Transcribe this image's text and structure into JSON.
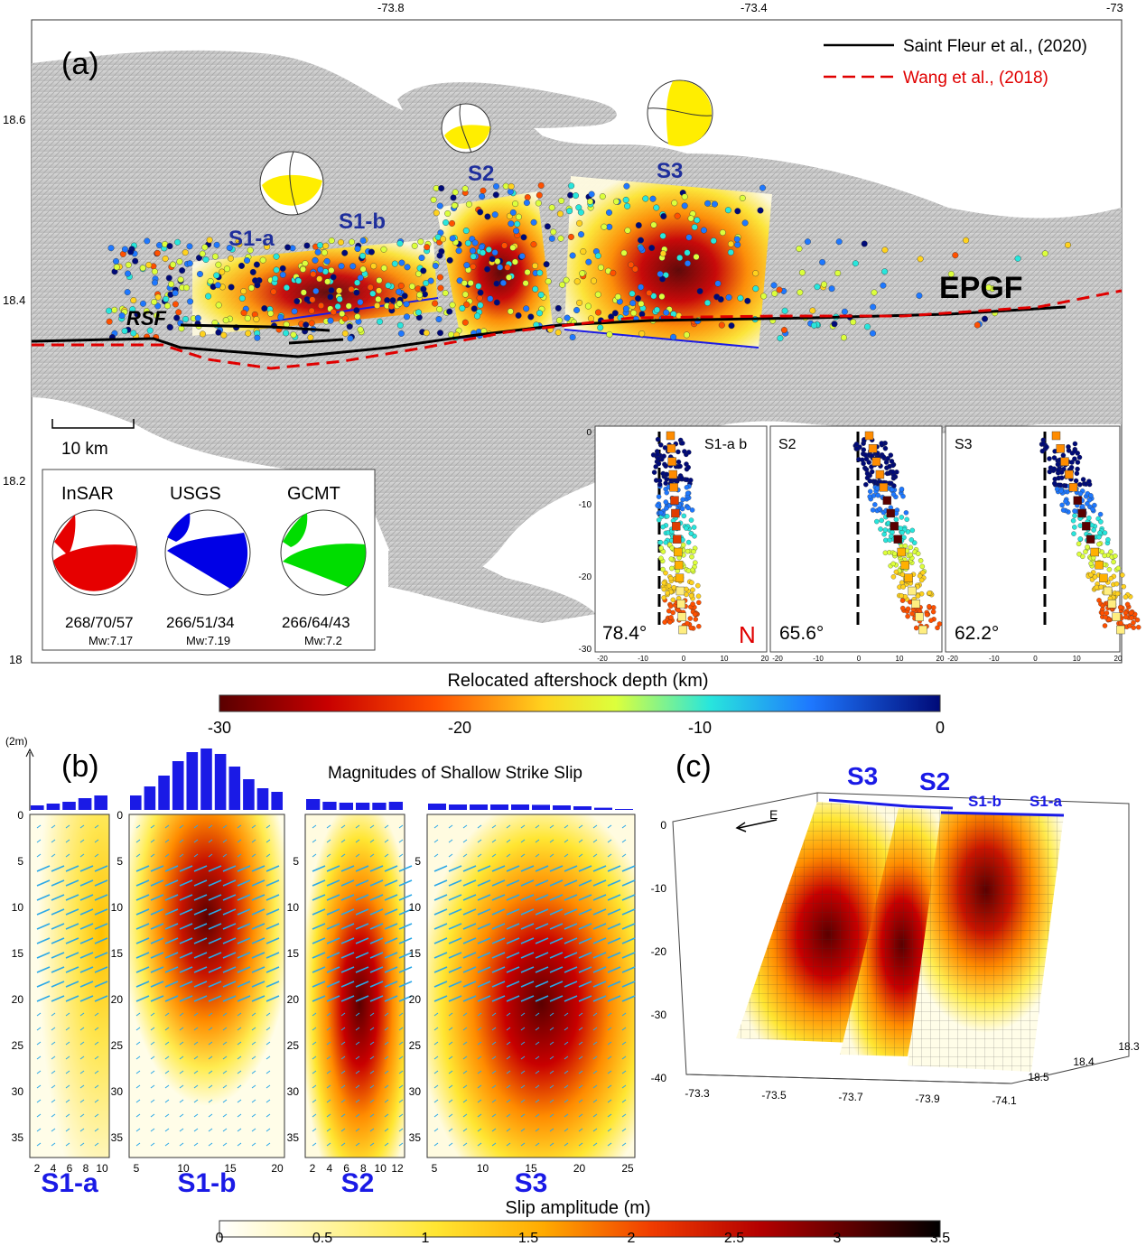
{
  "panel_a": {
    "label": "(a)",
    "lon_ticks": [
      "-73.8",
      "-73.4",
      "-73"
    ],
    "lat_ticks": [
      "18.6",
      "18.4",
      "18.2",
      "18"
    ],
    "legend": [
      {
        "text": "Saint Fleur et al., (2020)",
        "color": "#000000",
        "style": "solid"
      },
      {
        "text": "Wang et al., (2018)",
        "color": "#e00000",
        "style": "dashed"
      }
    ],
    "segments": [
      "S1-a",
      "S1-b",
      "S2",
      "S3"
    ],
    "fault_labels": {
      "epgf": "EPGF",
      "rsf": "RSF"
    },
    "scale_bar": "10 km",
    "mechanisms": [
      {
        "source": "InSAR",
        "params": "268/70/57",
        "mw": "Mw:7.17",
        "color": "#e60000"
      },
      {
        "source": "USGS",
        "params": "266/51/34",
        "mw": "Mw:7.19",
        "color": "#0000e6"
      },
      {
        "source": "GCMT",
        "params": "266/64/43",
        "mw": "Mw:7.2",
        "color": "#00dd00"
      }
    ],
    "profiles": [
      {
        "label": "S1-a b",
        "dip": "78.4°",
        "north": "N"
      },
      {
        "label": "S2",
        "dip": "65.6°",
        "north": ""
      },
      {
        "label": "S3",
        "dip": "62.2°",
        "north": ""
      }
    ],
    "profile_y_ticks": [
      "0",
      "-10",
      "-20",
      "-30"
    ],
    "profile_x_ticks": [
      "-20",
      "-10",
      "0",
      "10",
      "20"
    ]
  },
  "depth_colorbar": {
    "title": "Relocated aftershock depth (km)",
    "ticks": [
      "-30",
      "-20",
      "-10",
      "0"
    ]
  },
  "panel_b": {
    "label": "(b)",
    "scale": "(2m)",
    "title": "Magnitudes of Shallow Strike Slip",
    "segments": [
      {
        "name": "S1-a",
        "x_ticks": [
          "2",
          "4",
          "6",
          "8",
          "10"
        ],
        "histogram": [
          0.25,
          0.35,
          0.45,
          0.65,
          0.8
        ]
      },
      {
        "name": "S1-b",
        "x_ticks": [
          "5",
          "10",
          "15",
          "20"
        ],
        "histogram": [
          0.8,
          1.3,
          1.9,
          2.7,
          3.2,
          3.4,
          3.1,
          2.4,
          1.7,
          1.2,
          1.0
        ]
      },
      {
        "name": "S2",
        "x_ticks": [
          "2",
          "4",
          "6",
          "8",
          "10",
          "12"
        ],
        "histogram": [
          0.6,
          0.45,
          0.4,
          0.4,
          0.4,
          0.45
        ]
      },
      {
        "name": "S3",
        "x_ticks": [
          "5",
          "10",
          "15",
          "20",
          "25"
        ],
        "histogram": [
          0.35,
          0.3,
          0.3,
          0.3,
          0.3,
          0.28,
          0.25,
          0.2,
          0.12,
          0.05
        ]
      }
    ],
    "depth_ticks": [
      "0",
      "5",
      "10",
      "15",
      "20",
      "25",
      "30",
      "35"
    ]
  },
  "panel_c": {
    "label": "(c)",
    "segments": [
      "S3",
      "S2",
      "S1-b",
      "S1-a"
    ],
    "east_label": "E",
    "z_ticks": [
      "0",
      "-10",
      "-20",
      "-30",
      "-40"
    ],
    "lon_ticks": [
      "-73.3",
      "-73.5",
      "-73.7",
      "-73.9",
      "-74.1"
    ],
    "lat_ticks": [
      "18.5",
      "18.4",
      "18.3"
    ]
  },
  "slip_colorbar": {
    "title": "Slip amplitude (m)",
    "ticks": [
      "0",
      "0.5",
      "1",
      "1.5",
      "2",
      "2.5",
      "3",
      "3.5"
    ]
  }
}
